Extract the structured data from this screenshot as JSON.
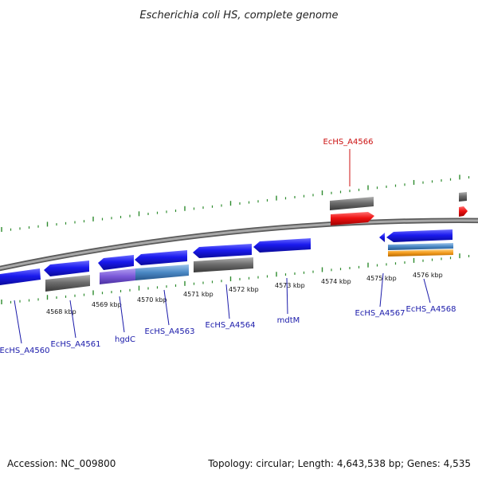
{
  "title": "Escherichia coli HS, complete genome",
  "footer": {
    "accession": "Accession: NC_009800",
    "stats": "Topology: circular; Length: 4,643,538 bp; Genes: 4,535"
  },
  "colors": {
    "backbone": "#8a8a8a",
    "tick": "#2e8b2e",
    "gene_blue": "#1a1aee",
    "gene_red": "#ee1111",
    "gene_gray": "#6e6e6e",
    "gene_violet": "#7a58d8",
    "gene_steel": "#4a88c4",
    "gene_orange": "#f29a1c",
    "label_blue": "#1a1aaa",
    "label_red": "#cc1111"
  },
  "scale_labels": [
    "4568 kbp",
    "4569 kbp",
    "4570 kbp",
    "4571 kbp",
    "4572 kbp",
    "4573 kbp",
    "4574 kbp",
    "4575 kbp",
    "4576 kbp"
  ],
  "genes": [
    {
      "name": "EcHS_A4560",
      "color": "label_blue"
    },
    {
      "name": "EcHS_A4561",
      "color": "label_blue"
    },
    {
      "name": "hgdC",
      "color": "label_blue"
    },
    {
      "name": "EcHS_A4563",
      "color": "label_blue"
    },
    {
      "name": "EcHS_A4564",
      "color": "label_blue"
    },
    {
      "name": "mdtM",
      "color": "label_blue"
    },
    {
      "name": "EcHS_A4566",
      "color": "label_red"
    },
    {
      "name": "EcHS_A4567",
      "color": "label_blue"
    },
    {
      "name": "EcHS_A4568",
      "color": "label_blue"
    }
  ]
}
